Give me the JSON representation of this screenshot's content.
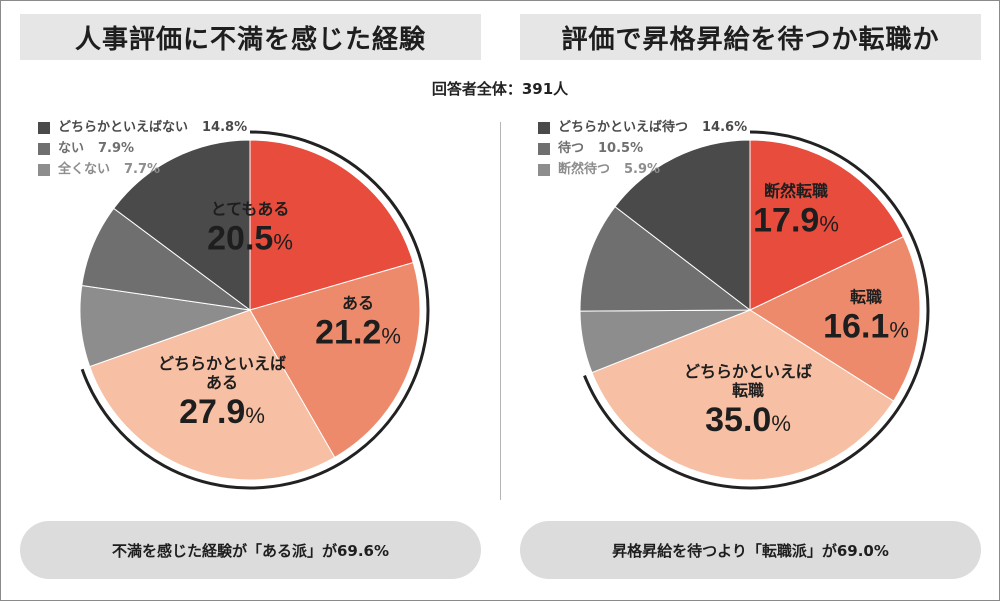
{
  "respondents": "回答者全体：391人",
  "colors": {
    "red": "#e84c3d",
    "salmon": "#ee8a6c",
    "peach": "#f7bfa3",
    "dark": "#4a4a4a",
    "mid": "#6f6f6f",
    "light": "#8d8d8d",
    "accent": "#222222"
  },
  "left": {
    "title": "人事評価に不満を感じた経験",
    "summary": "不満を感じた経験が「ある派」が69.6%",
    "legend": [
      {
        "label": "どちらかといえばない",
        "value": "14.8%",
        "color": "#4a4a4a"
      },
      {
        "label": "ない",
        "value": "7.9%",
        "color": "#6f6f6f"
      },
      {
        "label": "全くない",
        "value": "7.7%",
        "color": "#8d8d8d"
      }
    ]
  },
  "right": {
    "title": "評価で昇格昇給を待つか転職か",
    "summary": "昇格昇給を待つより「転職派」が69.0%",
    "legend": [
      {
        "label": "どちらかといえば待つ",
        "value": "14.6%",
        "color": "#4a4a4a"
      },
      {
        "label": "待つ",
        "value": "10.5%",
        "color": "#6f6f6f"
      },
      {
        "label": "断然待つ",
        "value": "5.9%",
        "color": "#8d8d8d"
      }
    ]
  },
  "chart_data": [
    {
      "type": "pie",
      "title": "人事評価に不満を感じた経験",
      "highlighted_group": "ある派",
      "highlighted_total": 69.6,
      "slices": [
        {
          "label": "とてもある",
          "value": 20.5,
          "value_text": "20.5",
          "color": "#e84c3d",
          "inner_label": true
        },
        {
          "label": "ある",
          "value": 21.2,
          "value_text": "21.2",
          "color": "#ee8a6c",
          "inner_label": true
        },
        {
          "label": "どちらかといえばある",
          "label_lines": [
            "どちらかといえば",
            "ある"
          ],
          "value": 27.9,
          "value_text": "27.9",
          "color": "#f7bfa3",
          "inner_label": true
        },
        {
          "label": "全くない",
          "value": 7.7,
          "color": "#8d8d8d",
          "inner_label": false
        },
        {
          "label": "ない",
          "value": 7.9,
          "color": "#6f6f6f",
          "inner_label": false
        },
        {
          "label": "どちらかといえばない",
          "value": 14.8,
          "color": "#4a4a4a",
          "inner_label": false
        }
      ]
    },
    {
      "type": "pie",
      "title": "評価で昇格昇給を待つか転職か",
      "highlighted_group": "転職派",
      "highlighted_total": 69.0,
      "slices": [
        {
          "label": "断然転職",
          "value": 17.9,
          "value_text": "17.9",
          "color": "#e84c3d",
          "inner_label": true
        },
        {
          "label": "転職",
          "value": 16.1,
          "value_text": "16.1",
          "color": "#ee8a6c",
          "inner_label": true
        },
        {
          "label": "どちらかといえば転職",
          "label_lines": [
            "どちらかといえば",
            "転職"
          ],
          "value": 35.0,
          "value_text": "35.0",
          "color": "#f7bfa3",
          "inner_label": true
        },
        {
          "label": "断然待つ",
          "value": 5.9,
          "color": "#8d8d8d",
          "inner_label": false
        },
        {
          "label": "待つ",
          "value": 10.5,
          "color": "#6f6f6f",
          "inner_label": false
        },
        {
          "label": "どちらかといえば待つ",
          "value": 14.6,
          "color": "#4a4a4a",
          "inner_label": false
        }
      ]
    }
  ]
}
